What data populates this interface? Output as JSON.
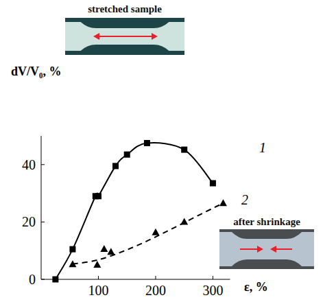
{
  "chart_data": {
    "type": "line",
    "x_label": "ε, %",
    "y_label": "dV/V₀, %",
    "xlim": [
      0,
      330
    ],
    "ylim": [
      0,
      50
    ],
    "xticks": [
      100,
      200,
      300
    ],
    "yticks": [
      0,
      20,
      40
    ],
    "grid": false,
    "annotations": [
      "stretched sample",
      "after shrinkage"
    ],
    "series": [
      {
        "name": "1",
        "color": "#000000",
        "marker": "square",
        "line_style": "solid",
        "x": [
          25,
          55,
          95,
          100,
          130,
          150,
          185,
          250,
          300
        ],
        "values": [
          0,
          10.5,
          29,
          29,
          39.5,
          43.5,
          47.5,
          45.2,
          33.5
        ]
      },
      {
        "name": "2",
        "color": "#000000",
        "marker": "triangle",
        "line_style": "none",
        "x": [
          55,
          98,
          110,
          122,
          200,
          250,
          318
        ],
        "values": [
          5.2,
          5,
          10.5,
          9.5,
          16.3,
          20,
          26.5
        ]
      },
      {
        "color": "#000000",
        "marker": "none",
        "line_style": "dashed",
        "x": [
          55,
          100,
          150,
          200,
          250,
          300,
          318
        ],
        "values": [
          5.3,
          6.8,
          10.3,
          14.8,
          19.8,
          24.8,
          26.5
        ]
      }
    ]
  }
}
